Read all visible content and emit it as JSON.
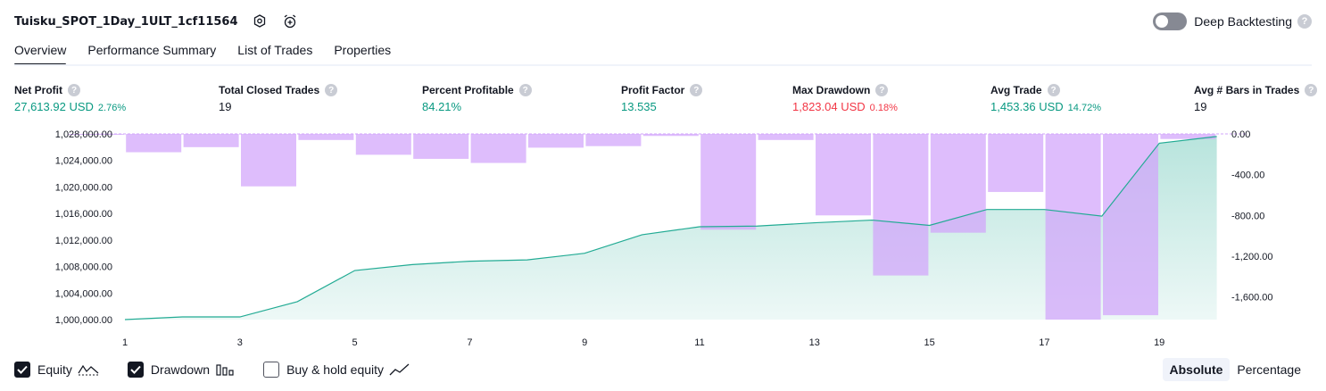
{
  "header": {
    "strategy_name": "Tuisku_SPOT_1Day_1ULT_1cf11564",
    "settings_icon": "gear-icon",
    "alert_icon": "alarm-clock-plus-icon",
    "deep_backtesting_label": "Deep Backtesting",
    "deep_backtesting_enabled": false,
    "help_glyph": "?"
  },
  "tabs": [
    {
      "label": "Overview",
      "active": true
    },
    {
      "label": "Performance Summary",
      "active": false
    },
    {
      "label": "List of Trades",
      "active": false
    },
    {
      "label": "Properties",
      "active": false
    }
  ],
  "metrics": [
    {
      "title": "Net Profit",
      "value": "27,613.92 USD",
      "pct": "2.76%",
      "color": "#089981"
    },
    {
      "title": "Total Closed Trades",
      "value": "19",
      "pct": "",
      "color": "#131722"
    },
    {
      "title": "Percent Profitable",
      "value": "84.21%",
      "pct": "",
      "color": "#089981"
    },
    {
      "title": "Profit Factor",
      "value": "13.535",
      "pct": "",
      "color": "#089981"
    },
    {
      "title": "Max Drawdown",
      "value": "1,823.04 USD",
      "pct": "0.18%",
      "color": "#f23645"
    },
    {
      "title": "Avg Trade",
      "value": "1,453.36 USD",
      "pct": "14.72%",
      "color": "#089981"
    },
    {
      "title": "Avg # Bars in Trades",
      "value": "19",
      "pct": "",
      "color": "#131722"
    }
  ],
  "chart_data": {
    "type": "area",
    "x_ticks": [
      "1",
      "3",
      "5",
      "7",
      "9",
      "11",
      "13",
      "15",
      "17",
      "19"
    ],
    "left_axis": {
      "ticks": [
        "1,028,000.00",
        "1,024,000.00",
        "1,020,000.00",
        "1,016,000.00",
        "1,012,000.00",
        "1,008,000.00",
        "1,004,000.00",
        "1,000,000.00"
      ],
      "tick_values": [
        1028000,
        1024000,
        1020000,
        1016000,
        1012000,
        1008000,
        1004000,
        1000000
      ],
      "ylim": [
        1000000,
        1028000
      ]
    },
    "right_axis": {
      "ticks": [
        "0.00",
        "-400.00",
        "-800.00",
        "-1,200.00",
        "-1,600.00"
      ],
      "tick_values": [
        0,
        -400,
        -800,
        -1200,
        -1600
      ],
      "ylim": [
        -1823.04,
        0
      ]
    },
    "series": [
      {
        "name": "Equity",
        "axis": "left",
        "color": "#22ab94",
        "x": [
          1,
          2,
          3,
          4,
          5,
          6,
          7,
          8,
          9,
          10,
          11,
          12,
          13,
          14,
          15,
          16,
          17,
          18,
          19,
          20
        ],
        "values": [
          1000000,
          1000400,
          1000400,
          1002700,
          1007400,
          1008300,
          1008800,
          1009000,
          1010000,
          1012800,
          1014000,
          1014100,
          1014600,
          1015000,
          1014200,
          1016600,
          1016600,
          1015600,
          1026600,
          1027613.92
        ]
      },
      {
        "name": "Drawdown",
        "axis": "right",
        "color": "#d1a4fb",
        "x": [
          1,
          2,
          3,
          4,
          5,
          6,
          7,
          8,
          9,
          10,
          11,
          12,
          13,
          14,
          15,
          16,
          17,
          18,
          19,
          20
        ],
        "values": [
          -5,
          -180,
          -130,
          -515,
          -60,
          -205,
          -245,
          -285,
          -135,
          -120,
          -20,
          -940,
          -60,
          -800,
          -1390,
          -970,
          -570,
          -1823.04,
          -1780,
          -50
        ]
      }
    ]
  },
  "legend": [
    {
      "label": "Equity",
      "checked": true,
      "icon": "equity-line-icon"
    },
    {
      "label": "Drawdown",
      "checked": true,
      "icon": "drawdown-bars-icon"
    },
    {
      "label": "Buy & hold equity",
      "checked": false,
      "icon": "buy-hold-line-icon"
    }
  ],
  "view_mode": {
    "options": [
      "Absolute",
      "Percentage"
    ],
    "selected": "Absolute"
  }
}
